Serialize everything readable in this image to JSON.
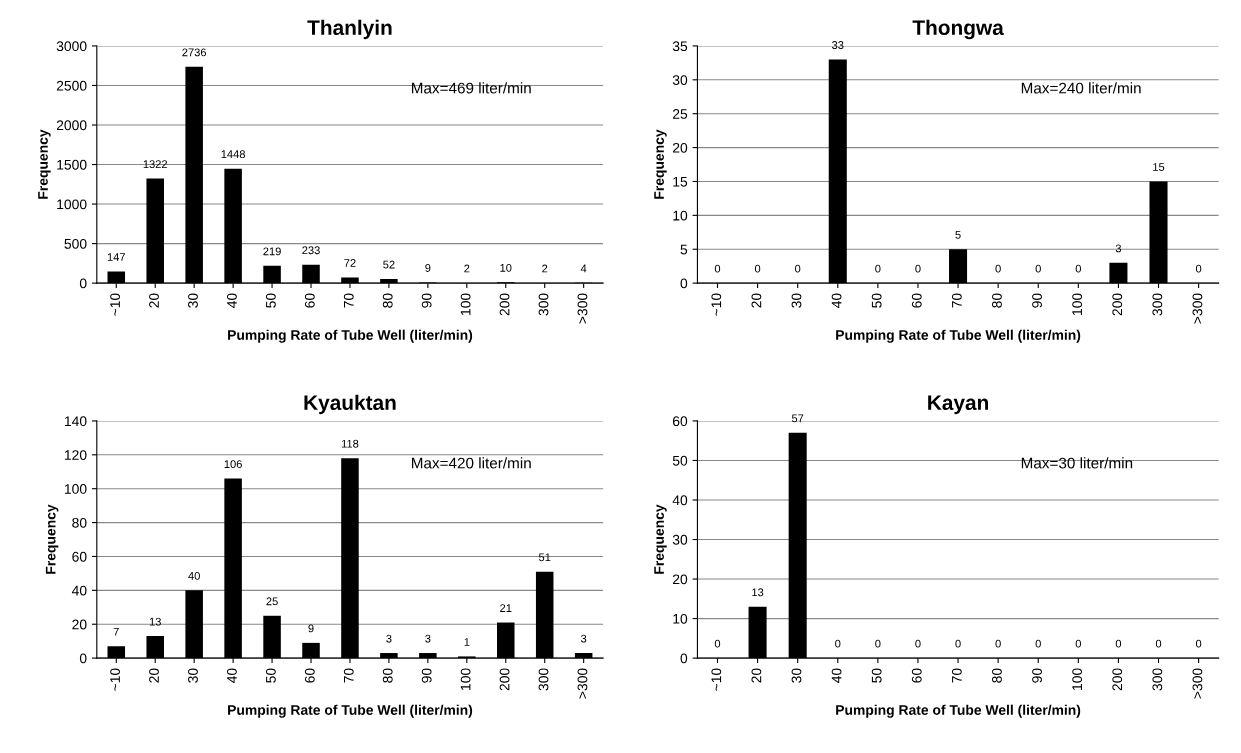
{
  "chart_data": [
    {
      "type": "bar",
      "title": "Thanlyin",
      "xlabel": "Pumping Rate of Tube Well (liter/min)",
      "ylabel": "Frequency",
      "categories": [
        "~10",
        "20",
        "30",
        "40",
        "50",
        "60",
        "70",
        "80",
        "90",
        "100",
        "200",
        "300",
        ">300"
      ],
      "values": [
        147,
        1322,
        2736,
        1448,
        219,
        233,
        72,
        52,
        9,
        2,
        10,
        2,
        4
      ],
      "color": "#000000",
      "ylim": [
        0,
        3000
      ],
      "yticks": [
        0,
        500,
        1000,
        1500,
        2000,
        2500,
        3000
      ],
      "grid": "y",
      "data_labels": true,
      "annotations": [
        "Max=469 liter/min"
      ]
    },
    {
      "type": "bar",
      "title": "Thongwa",
      "xlabel": "Pumping Rate of Tube Well (liter/min)",
      "ylabel": "Frequency",
      "categories": [
        "~10",
        "20",
        "30",
        "40",
        "50",
        "60",
        "70",
        "80",
        "90",
        "100",
        "200",
        "300",
        ">300"
      ],
      "values": [
        0,
        0,
        0,
        33,
        0,
        0,
        5,
        0,
        0,
        0,
        3,
        15,
        0
      ],
      "color": "#000000",
      "ylim": [
        0,
        35
      ],
      "yticks": [
        0,
        5,
        10,
        15,
        20,
        25,
        30,
        35
      ],
      "grid": "y",
      "data_labels": true,
      "annotations": [
        "Max=240 liter/min"
      ]
    },
    {
      "type": "bar",
      "title": "Kyauktan",
      "xlabel": "Pumping Rate of Tube Well (liter/min)",
      "ylabel": "Frequency",
      "categories": [
        "~10",
        "20",
        "30",
        "40",
        "50",
        "60",
        "70",
        "80",
        "90",
        "100",
        "200",
        "300",
        ">300"
      ],
      "values": [
        7,
        13,
        40,
        106,
        25,
        9,
        118,
        3,
        3,
        1,
        21,
        51,
        3
      ],
      "color": "#000000",
      "ylim": [
        0,
        140
      ],
      "yticks": [
        0,
        20,
        40,
        60,
        80,
        100,
        120,
        140
      ],
      "grid": "y",
      "data_labels": true,
      "annotations": [
        "Max=420 liter/min"
      ]
    },
    {
      "type": "bar",
      "title": "Kayan",
      "xlabel": "Pumping Rate of Tube Well (liter/min)",
      "ylabel": "Frequency",
      "categories": [
        "~10",
        "20",
        "30",
        "40",
        "50",
        "60",
        "70",
        "80",
        "90",
        "100",
        "200",
        "300",
        ">300"
      ],
      "values": [
        0,
        13,
        57,
        0,
        0,
        0,
        0,
        0,
        0,
        0,
        0,
        0,
        0
      ],
      "color": "#000000",
      "ylim": [
        0,
        60
      ],
      "yticks": [
        0,
        10,
        20,
        30,
        40,
        50,
        60
      ],
      "grid": "y",
      "data_labels": true,
      "annotations": [
        "Max=30 liter/min"
      ]
    }
  ]
}
